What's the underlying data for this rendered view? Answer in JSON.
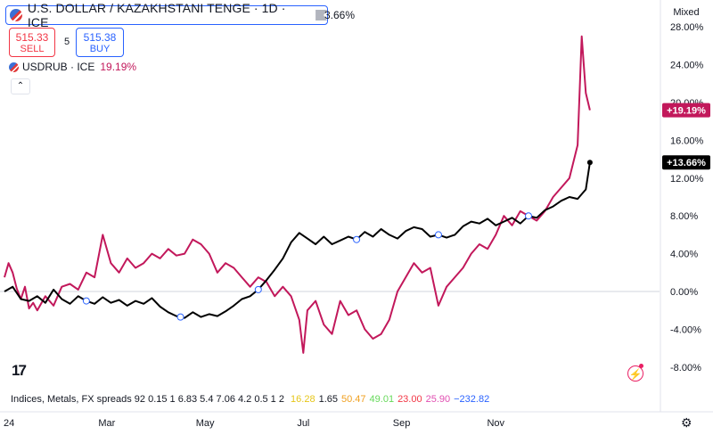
{
  "header": {
    "symbol_title": "U.S. DOLLAR / KAZAKHSTANI TENGE · 1D · ICE",
    "main_change_partial": "3.66%",
    "sell_price": "515.33",
    "sell_label": "SELL",
    "spread": "5",
    "buy_price": "515.38",
    "buy_label": "BUY",
    "compare_symbol": "USDRUB · ICE",
    "compare_change": "19.19%",
    "scale_mode": "Mixed",
    "collapse_icon": "chevron-up-icon"
  },
  "indicator_line": {
    "label": "Indices, Metals, FX spreads 92 0.15 1 6.83 5.4 7.06 4.2 0.5 1 2",
    "values": [
      {
        "text": "16.28",
        "color": "#e6c619"
      },
      {
        "text": "1.65",
        "color": "#131722"
      },
      {
        "text": "50.47",
        "color": "#f0a020"
      },
      {
        "text": "49.01",
        "color": "#66d95a"
      },
      {
        "text": "23.00",
        "color": "#f23645"
      },
      {
        "text": "25.90",
        "color": "#e14fb2"
      },
      {
        "text": "−232.82",
        "color": "#2962ff"
      }
    ]
  },
  "chart_data": {
    "type": "line",
    "y_unit": "%",
    "ylim": [
      -9,
      28
    ],
    "y_ticks": [
      "28.00%",
      "24.00%",
      "20.00%",
      "16.00%",
      "12.00%",
      "8.00%",
      "4.00%",
      "0.00%",
      "-4.00%",
      "-8.00%"
    ],
    "x_ticks": [
      "24",
      "Mar",
      "May",
      "Jul",
      "Sep",
      "Nov"
    ],
    "last_value_labels": [
      {
        "text": "+19.19%",
        "value": 19.19,
        "color": "#c2185b"
      },
      {
        "text": "+13.66%",
        "value": 13.66,
        "color": "#000000"
      }
    ],
    "series": [
      {
        "color": "#000000",
        "last": 13.66,
        "points": [
          [
            0,
            0
          ],
          [
            2,
            0.5
          ],
          [
            4,
            -0.8
          ],
          [
            6,
            -1.0
          ],
          [
            8,
            -0.5
          ],
          [
            10,
            -1.2
          ],
          [
            12,
            0.2
          ],
          [
            14,
            -0.8
          ],
          [
            16,
            -1.3
          ],
          [
            18,
            -0.5
          ],
          [
            20,
            -1.0
          ],
          [
            22,
            -1.3
          ],
          [
            24,
            -0.6
          ],
          [
            26,
            -1.2
          ],
          [
            28,
            -0.9
          ],
          [
            30,
            -1.5
          ],
          [
            32,
            -1.0
          ],
          [
            34,
            -1.3
          ],
          [
            36,
            -0.7
          ],
          [
            38,
            -1.6
          ],
          [
            40,
            -2.2
          ],
          [
            42,
            -2.6
          ],
          [
            44,
            -2.8
          ],
          [
            46,
            -2.2
          ],
          [
            48,
            -2.7
          ],
          [
            50,
            -2.4
          ],
          [
            52,
            -2.6
          ],
          [
            54,
            -2.1
          ],
          [
            56,
            -1.5
          ],
          [
            58,
            -0.8
          ],
          [
            60,
            -0.5
          ],
          [
            62,
            0.2
          ],
          [
            64,
            1.2
          ],
          [
            66,
            2.3
          ],
          [
            68,
            3.5
          ],
          [
            70,
            5.2
          ],
          [
            72,
            6.2
          ],
          [
            74,
            5.6
          ],
          [
            76,
            5.0
          ],
          [
            78,
            5.8
          ],
          [
            80,
            5.0
          ],
          [
            82,
            5.4
          ],
          [
            84,
            5.8
          ],
          [
            86,
            5.5
          ],
          [
            88,
            6.3
          ],
          [
            90,
            5.8
          ],
          [
            92,
            6.6
          ],
          [
            94,
            6.0
          ],
          [
            96,
            5.6
          ],
          [
            98,
            6.4
          ],
          [
            100,
            6.8
          ],
          [
            102,
            6.6
          ],
          [
            104,
            5.8
          ],
          [
            106,
            6.0
          ],
          [
            108,
            5.7
          ],
          [
            110,
            6.0
          ],
          [
            112,
            6.9
          ],
          [
            114,
            7.4
          ],
          [
            116,
            7.2
          ],
          [
            118,
            7.7
          ],
          [
            120,
            7.0
          ],
          [
            122,
            7.4
          ],
          [
            124,
            7.8
          ],
          [
            126,
            7.2
          ],
          [
            128,
            8.0
          ],
          [
            130,
            7.8
          ],
          [
            132,
            8.6
          ],
          [
            134,
            9.0
          ],
          [
            136,
            9.6
          ],
          [
            138,
            10.0
          ],
          [
            140,
            9.8
          ],
          [
            142,
            10.8
          ],
          [
            143,
            13.66
          ]
        ]
      },
      {
        "color": "#c2185b",
        "last": 19.19,
        "points": [
          [
            0,
            1.5
          ],
          [
            1,
            3.0
          ],
          [
            2,
            2.0
          ],
          [
            3,
            0.3
          ],
          [
            4,
            -0.8
          ],
          [
            5,
            0.5
          ],
          [
            6,
            -1.8
          ],
          [
            7,
            -1.2
          ],
          [
            8,
            -2.0
          ],
          [
            10,
            -0.5
          ],
          [
            12,
            -1.5
          ],
          [
            14,
            0.5
          ],
          [
            16,
            0.8
          ],
          [
            18,
            0.2
          ],
          [
            20,
            2.0
          ],
          [
            22,
            1.5
          ],
          [
            24,
            6.0
          ],
          [
            26,
            3.0
          ],
          [
            28,
            2.0
          ],
          [
            30,
            3.5
          ],
          [
            32,
            2.5
          ],
          [
            34,
            3.0
          ],
          [
            36,
            4.0
          ],
          [
            38,
            3.5
          ],
          [
            40,
            4.5
          ],
          [
            42,
            3.8
          ],
          [
            44,
            4.0
          ],
          [
            46,
            5.5
          ],
          [
            48,
            5.0
          ],
          [
            50,
            4.0
          ],
          [
            52,
            2.0
          ],
          [
            54,
            3.0
          ],
          [
            56,
            2.5
          ],
          [
            58,
            1.5
          ],
          [
            60,
            0.5
          ],
          [
            62,
            1.5
          ],
          [
            64,
            1.0
          ],
          [
            66,
            -0.5
          ],
          [
            68,
            0.5
          ],
          [
            70,
            -0.5
          ],
          [
            72,
            -3.0
          ],
          [
            73,
            -6.5
          ],
          [
            74,
            -2.0
          ],
          [
            76,
            -1.0
          ],
          [
            78,
            -3.5
          ],
          [
            80,
            -4.5
          ],
          [
            82,
            -1.0
          ],
          [
            84,
            -2.5
          ],
          [
            86,
            -2.0
          ],
          [
            88,
            -4.0
          ],
          [
            90,
            -5.0
          ],
          [
            92,
            -4.5
          ],
          [
            94,
            -3.0
          ],
          [
            96,
            0.0
          ],
          [
            98,
            1.5
          ],
          [
            100,
            3.0
          ],
          [
            102,
            2.0
          ],
          [
            104,
            2.5
          ],
          [
            106,
            -1.5
          ],
          [
            108,
            0.5
          ],
          [
            110,
            1.5
          ],
          [
            112,
            2.5
          ],
          [
            114,
            4.0
          ],
          [
            116,
            5.0
          ],
          [
            118,
            4.5
          ],
          [
            120,
            6.0
          ],
          [
            122,
            8.0
          ],
          [
            124,
            7.0
          ],
          [
            126,
            8.5
          ],
          [
            128,
            8.0
          ],
          [
            130,
            7.5
          ],
          [
            132,
            8.5
          ],
          [
            134,
            10.0
          ],
          [
            136,
            11.0
          ],
          [
            138,
            12.0
          ],
          [
            140,
            15.5
          ],
          [
            141,
            27.0
          ],
          [
            142,
            21.0
          ],
          [
            143,
            19.19
          ]
        ]
      }
    ],
    "markers": [
      {
        "series": 0,
        "x": 20
      },
      {
        "series": 0,
        "x": 43
      },
      {
        "series": 0,
        "x": 62
      },
      {
        "series": 0,
        "x": 86
      },
      {
        "series": 0,
        "x": 106
      },
      {
        "series": 0,
        "x": 128
      }
    ]
  }
}
